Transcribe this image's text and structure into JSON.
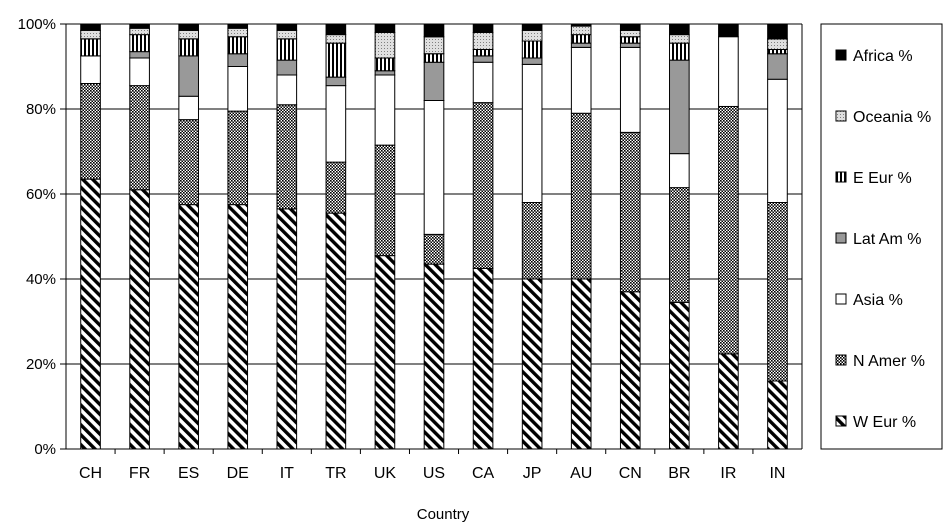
{
  "chart_data": {
    "type": "bar",
    "stacked": true,
    "normalized": true,
    "title": "",
    "xlabel": "Country",
    "ylabel": "",
    "ylim": [
      0,
      100
    ],
    "y_ticks": [
      "0%",
      "20%",
      "40%",
      "60%",
      "80%",
      "100%"
    ],
    "grid": "horizontal",
    "legend_position": "right",
    "categories": [
      "CH",
      "FR",
      "ES",
      "DE",
      "IT",
      "TR",
      "UK",
      "US",
      "CA",
      "JP",
      "AU",
      "CN",
      "BR",
      "IR",
      "IN"
    ],
    "series": [
      {
        "name": "W Eur %",
        "pattern": "diagonal-hatch",
        "values": [
          63.5,
          61,
          57.5,
          57.5,
          56.5,
          55.5,
          45.5,
          43.5,
          42.5,
          40,
          40,
          37,
          34.5,
          22.5,
          16
        ]
      },
      {
        "name": "N Amer %",
        "pattern": "dots",
        "values": [
          22.5,
          24.5,
          20,
          22,
          24.5,
          12,
          26,
          7,
          39,
          18,
          39,
          37.5,
          27,
          58.5,
          42
        ]
      },
      {
        "name": "Asia %",
        "pattern": "white",
        "values": [
          6.5,
          6.5,
          5.5,
          10.5,
          7,
          18,
          16.5,
          31.5,
          9.5,
          32.5,
          15.5,
          20,
          8,
          16.5,
          29
        ]
      },
      {
        "name": "Lat Am %",
        "pattern": "gray",
        "values": [
          0,
          1.5,
          9.5,
          3,
          3.5,
          2,
          1,
          9,
          1.5,
          1.5,
          1,
          1,
          22,
          0,
          6
        ]
      },
      {
        "name": "E Eur %",
        "pattern": "vertical-stripes",
        "values": [
          4,
          4,
          4,
          4,
          5,
          8,
          3,
          2,
          1.5,
          4,
          2,
          1.5,
          4,
          0,
          1
        ]
      },
      {
        "name": "Oceania %",
        "pattern": "light-dots",
        "values": [
          2,
          1.5,
          2,
          2,
          2,
          2,
          6,
          4,
          4,
          2.5,
          2,
          1.5,
          2,
          0,
          2.5
        ]
      },
      {
        "name": "Africa %",
        "pattern": "solid-black",
        "values": [
          1.5,
          1,
          1.5,
          1,
          1.5,
          2.5,
          2,
          3,
          2,
          1.5,
          0.5,
          1.5,
          2.5,
          3,
          3.5
        ]
      }
    ],
    "colors": {
      "gray": "#999999",
      "black": "#000000",
      "white": "#ffffff"
    }
  }
}
